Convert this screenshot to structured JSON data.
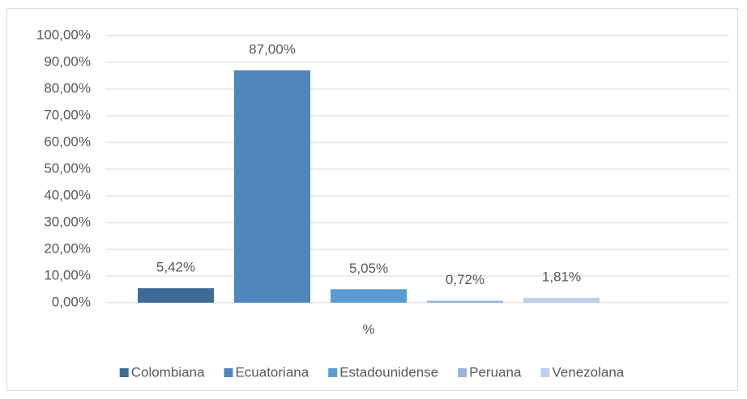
{
  "chart_data": {
    "type": "bar",
    "categories": [
      "%"
    ],
    "series": [
      {
        "name": "Colombiana",
        "color": "#3f6b97",
        "values": [
          5.42
        ],
        "value_labels": [
          "5,42%"
        ]
      },
      {
        "name": "Ecuatoriana",
        "color": "#4f86bd",
        "values": [
          87.0
        ],
        "value_labels": [
          "87,00%"
        ]
      },
      {
        "name": "Estadounidense",
        "color": "#5b9bd5",
        "values": [
          5.05
        ],
        "value_labels": [
          "5,05%"
        ]
      },
      {
        "name": "Peruana",
        "color": "#93b4de",
        "values": [
          0.72
        ],
        "value_labels": [
          "0,72%"
        ]
      },
      {
        "name": "Venezolana",
        "color": "#bcd0ec",
        "values": [
          1.81
        ],
        "value_labels": [
          "1,81%"
        ]
      }
    ],
    "ylim": [
      0,
      100
    ],
    "yticks": [
      {
        "value": 0,
        "label": "0,00%"
      },
      {
        "value": 10,
        "label": "10,00%"
      },
      {
        "value": 20,
        "label": "20,00%"
      },
      {
        "value": 30,
        "label": "30,00%"
      },
      {
        "value": 40,
        "label": "40,00%"
      },
      {
        "value": 50,
        "label": "50,00%"
      },
      {
        "value": 60,
        "label": "60,00%"
      },
      {
        "value": 70,
        "label": "70,00%"
      },
      {
        "value": 80,
        "label": "80,00%"
      },
      {
        "value": 90,
        "label": "90,00%"
      },
      {
        "value": 100,
        "label": "100,00%"
      }
    ],
    "grid": true,
    "legend": "bottom"
  }
}
